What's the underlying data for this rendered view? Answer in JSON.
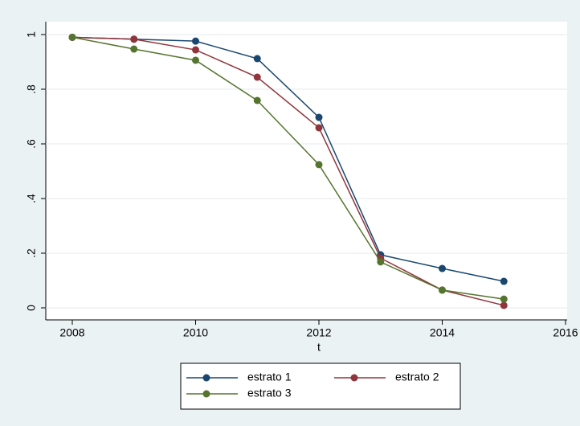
{
  "chart_data": {
    "type": "line",
    "xlabel": "t",
    "x": [
      2008,
      2009,
      2010,
      2011,
      2012,
      2013,
      2014,
      2015
    ],
    "series": [
      {
        "name": "estrato 1",
        "color": "#1a476f",
        "values": [
          0.99,
          0.983,
          0.976,
          0.912,
          0.697,
          0.194,
          0.144,
          0.097
        ]
      },
      {
        "name": "estrato 2",
        "color": "#90353b",
        "values": [
          0.99,
          0.983,
          0.944,
          0.844,
          0.659,
          0.182,
          0.065,
          0.009
        ]
      },
      {
        "name": "estrato 3",
        "color": "#55752f",
        "values": [
          0.99,
          0.947,
          0.906,
          0.759,
          0.524,
          0.168,
          0.065,
          0.032
        ]
      }
    ],
    "xlim": [
      2008,
      2016
    ],
    "xticks": [
      2008,
      2010,
      2012,
      2014,
      2016
    ],
    "ylim": [
      0,
      1
    ],
    "yticks": [
      0,
      {
        "value": 0.2,
        "label": ".2"
      },
      {
        "value": 0.4,
        "label": ".4"
      },
      {
        "value": 0.6,
        "label": ".6"
      },
      {
        "value": 0.8,
        "label": ".8"
      },
      1
    ],
    "grid": true
  }
}
